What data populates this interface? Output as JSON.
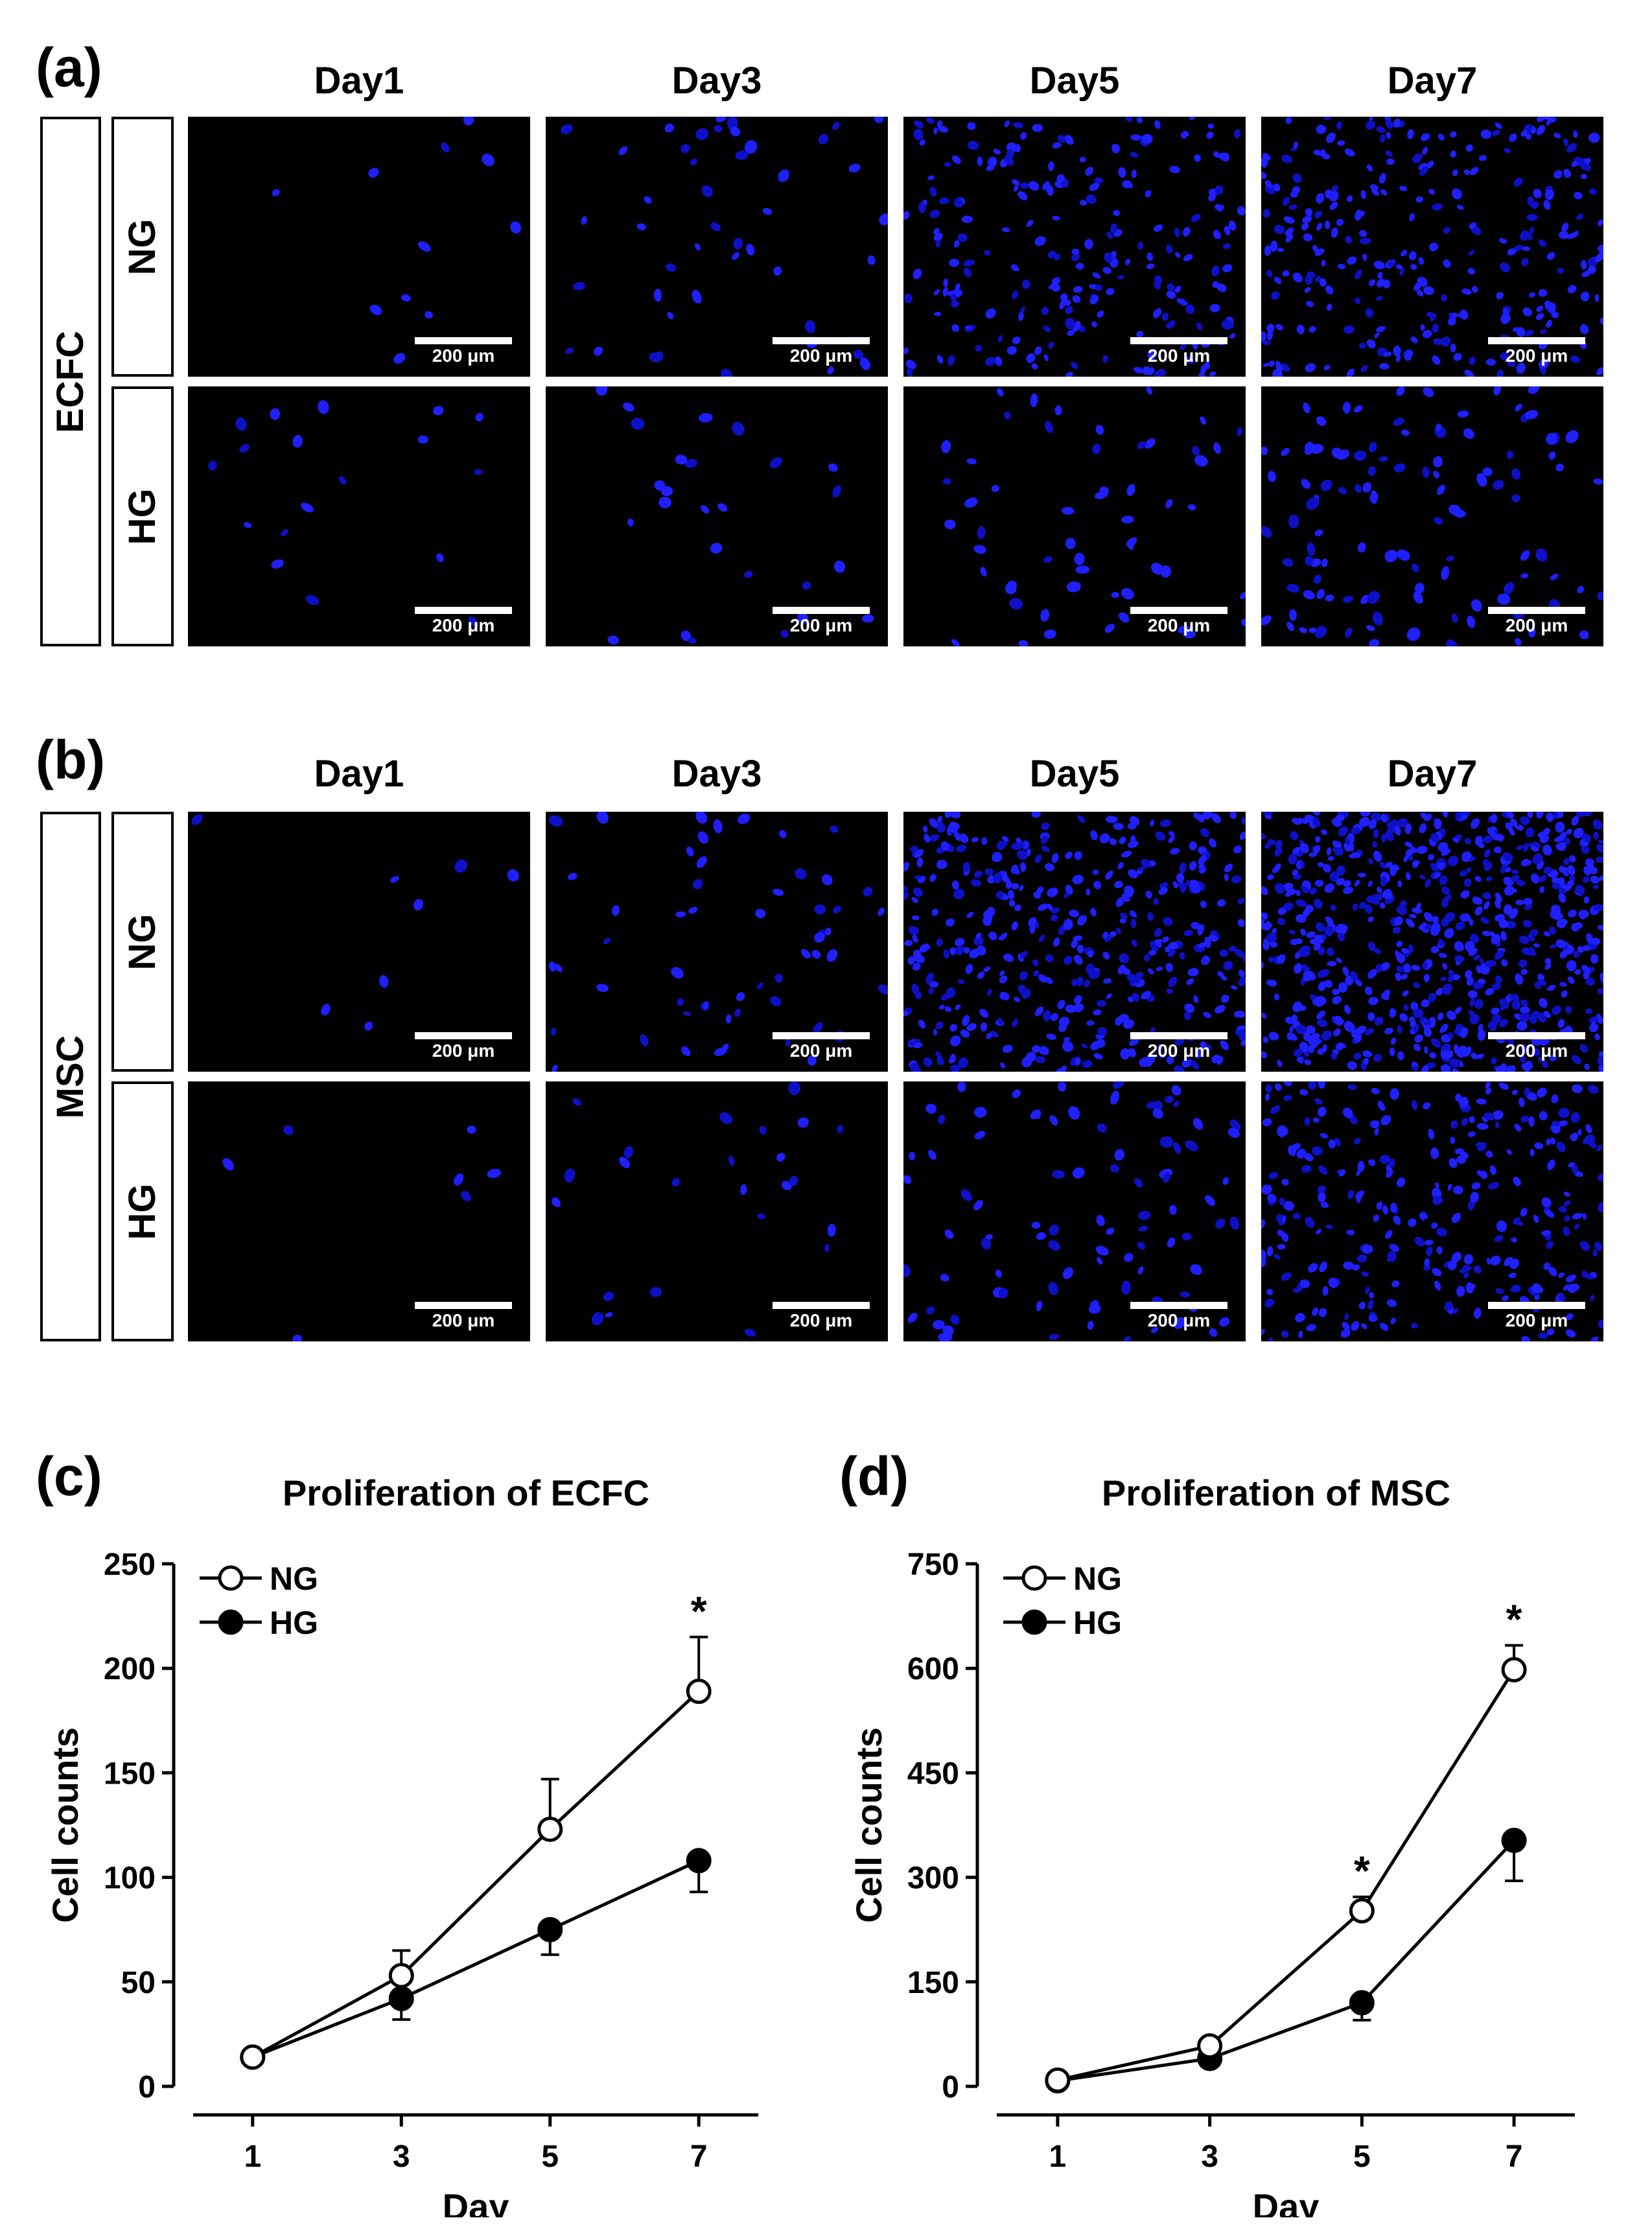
{
  "panel_a": {
    "label": "(a)",
    "group": "ECFC",
    "columns": [
      "Day1",
      "Day3",
      "Day5",
      "Day7"
    ],
    "rows": [
      "NG",
      "HG"
    ],
    "scale_bar": "200 μm"
  },
  "panel_b": {
    "label": "(b)",
    "group": "MSC",
    "columns": [
      "Day1",
      "Day3",
      "Day5",
      "Day7"
    ],
    "rows": [
      "NG",
      "HG"
    ],
    "scale_bar": "200 μm"
  },
  "colors": {
    "nucleus": "#1f1fff",
    "nucleus_dim": "#0e10c8",
    "background": "#000000"
  },
  "chart_data": [
    {
      "panel_label": "(c)",
      "type": "line",
      "title": "Proliferation of ECFC",
      "xlabel": "Day",
      "ylabel": "Cell counts",
      "x": [
        1,
        3,
        5,
        7
      ],
      "ylim": [
        0,
        250
      ],
      "yticks": [
        0,
        50,
        100,
        150,
        200,
        250
      ],
      "legend_position": "top-left",
      "series": [
        {
          "name": "NG",
          "marker": "open-circle",
          "values": [
            14,
            53,
            123,
            189
          ],
          "errors": [
            3,
            12,
            24,
            26
          ]
        },
        {
          "name": "HG",
          "marker": "filled-circle",
          "values": [
            14,
            42,
            75,
            108
          ],
          "errors": [
            3,
            10,
            12,
            15
          ]
        }
      ],
      "annotations": [
        {
          "x": 7,
          "text": "*"
        }
      ]
    },
    {
      "panel_label": "(d)",
      "type": "line",
      "title": "Proliferation of MSC",
      "xlabel": "Day",
      "ylabel": "Cell counts",
      "x": [
        1,
        3,
        5,
        7
      ],
      "ylim": [
        0,
        750
      ],
      "yticks": [
        0,
        150,
        300,
        450,
        600,
        750
      ],
      "legend_position": "top-left",
      "series": [
        {
          "name": "NG",
          "marker": "open-circle",
          "values": [
            9,
            58,
            252,
            598
          ],
          "errors": [
            5,
            10,
            20,
            35
          ]
        },
        {
          "name": "HG",
          "marker": "filled-circle",
          "values": [
            8,
            40,
            120,
            353
          ],
          "errors": [
            5,
            8,
            25,
            58
          ]
        }
      ],
      "annotations": [
        {
          "x": 5,
          "text": "*"
        },
        {
          "x": 7,
          "text": "*"
        }
      ]
    }
  ]
}
